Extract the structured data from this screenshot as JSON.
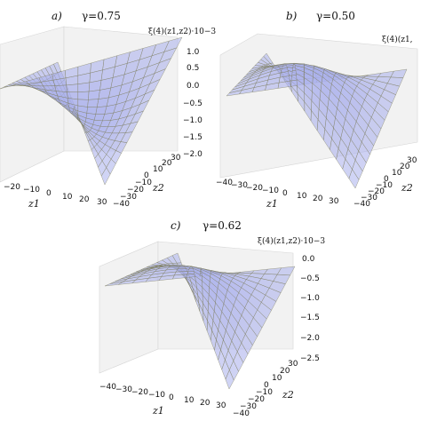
{
  "panels": [
    {
      "letter": "a)",
      "gamma": "γ=0.75",
      "zlabel": "ξ(4)(z1,z2)·10−3",
      "ztick_labels": [
        "1.0",
        "0.5",
        "0.0",
        "−0.5",
        "−1.0",
        "−1.5",
        "−2.0"
      ],
      "x_ticks": [
        "−20",
        "−10",
        "0",
        "10",
        "20",
        "30"
      ],
      "y_ticks": [
        "−40",
        "−30",
        "−20",
        "−10",
        "0",
        "10",
        "20",
        "30"
      ],
      "xlabel": "z1",
      "ylabel": "z2"
    },
    {
      "letter": "b)",
      "gamma": "γ=0.50",
      "zlabel": "ξ(4)(z1,",
      "ztick_labels": [],
      "x_ticks": [
        "−40",
        "−30",
        "−20",
        "−10",
        "0",
        "10",
        "20",
        "30"
      ],
      "y_ticks": [
        "−40",
        "−30",
        "−20",
        "−10",
        "0",
        "10",
        "20",
        "30"
      ],
      "xlabel": "z1",
      "ylabel": "z2"
    },
    {
      "letter": "c)",
      "gamma": "γ=0.62",
      "zlabel": "ξ(4)(z1,z2)·10−3",
      "ztick_labels": [
        "0.0",
        "−0.5",
        "−1.0",
        "−1.5",
        "−2.0",
        "−2.5"
      ],
      "x_ticks": [
        "−40",
        "−30",
        "−20",
        "−10",
        "0",
        "10",
        "20",
        "30"
      ],
      "y_ticks": [
        "−40",
        "−30",
        "−20",
        "−10",
        "0",
        "10",
        "20",
        "30"
      ],
      "xlabel": "z1",
      "ylabel": "z2"
    }
  ],
  "chart_data": [
    {
      "type": "surface3d",
      "panel": "a",
      "title": "γ=0.75",
      "xlabel": "z1",
      "ylabel": "z2",
      "zlabel": "ξ(4)(z1,z2)·10−3",
      "xlim": [
        -40,
        40
      ],
      "ylim": [
        -40,
        40
      ],
      "zlim": [
        -2.0,
        1.2
      ],
      "shape": "saddle",
      "corner_values": {
        "near_x_far_y": 1.2,
        "far_x_near_y": 1.0,
        "near_corner": -2.0,
        "far_corner": -1.4
      },
      "surface_color": "#aab0ec",
      "grid_color": "#7a7a55"
    },
    {
      "type": "surface3d",
      "panel": "b",
      "title": "γ=0.50",
      "xlabel": "z1",
      "ylabel": "z2",
      "zlabel": "ξ(4)(z1,",
      "xlim": [
        -40,
        40
      ],
      "ylim": [
        -40,
        40
      ],
      "shape": "dome",
      "surface_color": "#aab0ec",
      "grid_color": "#7a7a55"
    },
    {
      "type": "surface3d",
      "panel": "c",
      "title": "γ=0.62",
      "xlabel": "z1",
      "ylabel": "z2",
      "zlabel": "ξ(4)(z1,z2)·10−3",
      "xlim": [
        -40,
        40
      ],
      "ylim": [
        -40,
        40
      ],
      "zlim": [
        -2.5,
        0.0
      ],
      "shape": "dome",
      "peak_value": 0.0,
      "corner_value": -2.5,
      "surface_color": "#aab0ec",
      "grid_color": "#7a7a55"
    }
  ]
}
